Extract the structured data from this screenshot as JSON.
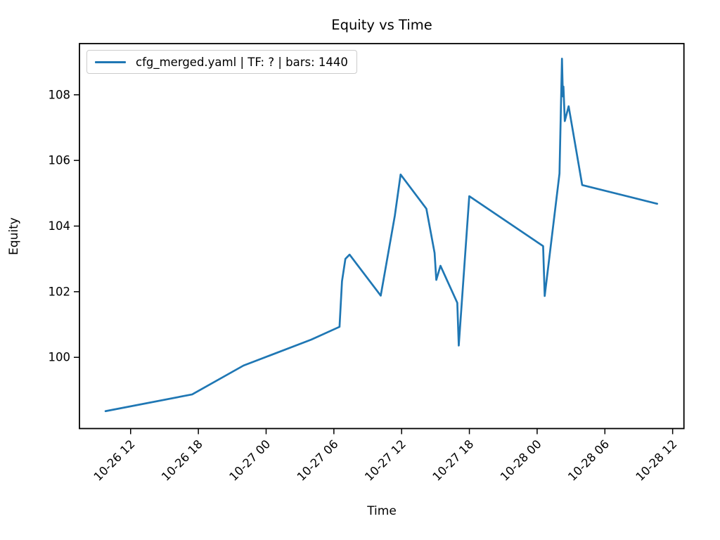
{
  "figure": {
    "background": "#ffffff",
    "text_color": "#000000"
  },
  "chart_data": {
    "type": "line",
    "title": "Equity vs Time",
    "xlabel": "Time",
    "ylabel": "Equity",
    "grid": false,
    "frame": true,
    "legend_position": "upper left",
    "legend": [
      {
        "label": "cfg_merged.yaml | TF: ? | bars: 1440",
        "color": "#1f77b4"
      }
    ],
    "x_encoding": "hours since 10-26 00:00, shown as MM-DD HH tick labels",
    "x_tick_labels": [
      "10-26 12",
      "10-26 18",
      "10-27 00",
      "10-27 06",
      "10-27 12",
      "10-27 18",
      "10-28 00",
      "10-28 06",
      "10-28 12"
    ],
    "x_tick_hours": [
      12,
      18,
      24,
      30,
      36,
      42,
      48,
      54,
      60
    ],
    "y_ticks": [
      100,
      102,
      104,
      106,
      108
    ],
    "xlim_hours": [
      7.47,
      61.0
    ],
    "ylim": [
      97.83,
      109.56
    ],
    "series": [
      {
        "name": "cfg_merged.yaml | TF: ? | bars: 1440",
        "color": "#1f77b4",
        "points": [
          [
            9.78,
            98.36
          ],
          [
            17.45,
            98.87
          ],
          [
            22.0,
            99.75
          ],
          [
            28.0,
            100.54
          ],
          [
            30.5,
            100.93
          ],
          [
            30.72,
            102.32
          ],
          [
            31.02,
            103.0
          ],
          [
            31.39,
            103.13
          ],
          [
            34.15,
            101.88
          ],
          [
            35.4,
            104.32
          ],
          [
            35.91,
            105.57
          ],
          [
            38.19,
            104.53
          ],
          [
            38.92,
            103.18
          ],
          [
            39.07,
            102.36
          ],
          [
            39.44,
            102.79
          ],
          [
            40.93,
            101.66
          ],
          [
            41.06,
            100.36
          ],
          [
            41.99,
            104.91
          ],
          [
            48.53,
            103.39
          ],
          [
            48.67,
            101.87
          ],
          [
            49.98,
            105.6
          ],
          [
            50.2,
            109.1
          ],
          [
            50.28,
            107.95
          ],
          [
            50.33,
            108.25
          ],
          [
            50.45,
            107.2
          ],
          [
            50.79,
            107.65
          ],
          [
            51.99,
            105.25
          ],
          [
            58.63,
            104.68
          ]
        ]
      }
    ]
  }
}
